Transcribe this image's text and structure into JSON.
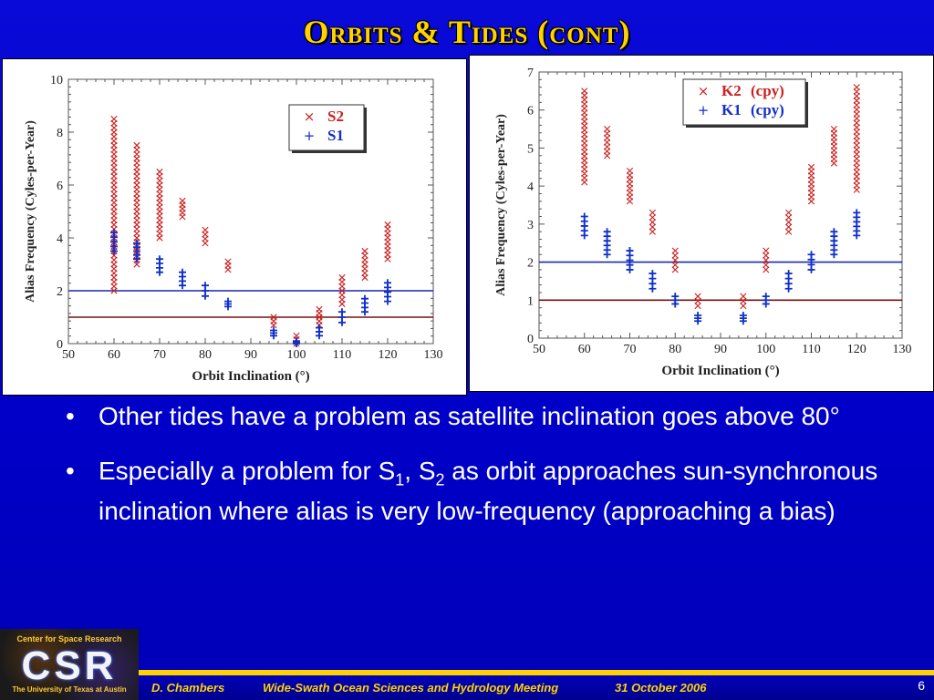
{
  "slide": {
    "title": "Orbits & Tides (cont)",
    "bullets": [
      {
        "text_before": "Other tides have a problem as satellite inclination goes above 80°"
      },
      {
        "text_before": "Especially a problem for S",
        "sub1": "1",
        "mid": ", S",
        "sub2": "2",
        "text_after": " as orbit approaches sun-synchronous inclination where alias is very low-frequency (approaching a bias)"
      }
    ],
    "bullet_glyph": "•",
    "footer": {
      "author": "D. Chambers",
      "meeting": "Wide-Swath Ocean Sciences and Hydrology Meeting",
      "date": "31 October 2006",
      "page": "6"
    },
    "logo": {
      "top_text": "Center for Space Research",
      "big_text": "CSR",
      "bottom_text": "The University of Texas at Austin"
    }
  },
  "chart_data": [
    {
      "type": "scatter",
      "title": "",
      "xlabel": "Orbit Inclination (°)",
      "ylabel": "Alias Frequency (Cyles-per-Year)",
      "xlim": [
        50,
        130
      ],
      "ylim": [
        0,
        10
      ],
      "xticks": [
        50,
        60,
        70,
        80,
        90,
        100,
        110,
        120,
        130
      ],
      "yticks": [
        0,
        2,
        4,
        6,
        8,
        10
      ],
      "legend_position": "top-right",
      "grid": false,
      "reference_lines": [
        {
          "y": 2,
          "color": "#1a2aaa"
        },
        {
          "y": 1,
          "color": "#7a1010"
        }
      ],
      "series": [
        {
          "name": "S2",
          "marker": "×",
          "color": "#cc1f1f",
          "ranges": [
            {
              "x": 60,
              "ymin": 2.0,
              "ymax": 8.5
            },
            {
              "x": 65,
              "ymin": 3.0,
              "ymax": 7.5
            },
            {
              "x": 70,
              "ymin": 4.0,
              "ymax": 6.5
            },
            {
              "x": 75,
              "ymin": 4.8,
              "ymax": 5.4
            },
            {
              "x": 80,
              "ymin": 3.8,
              "ymax": 4.3
            },
            {
              "x": 85,
              "ymin": 2.8,
              "ymax": 3.1
            },
            {
              "x": 95,
              "ymin": 0.7,
              "ymax": 1.0
            },
            {
              "x": 100,
              "ymin": 0.0,
              "ymax": 0.3
            },
            {
              "x": 105,
              "ymin": 0.7,
              "ymax": 1.3
            },
            {
              "x": 110,
              "ymin": 1.5,
              "ymax": 2.5
            },
            {
              "x": 115,
              "ymin": 2.5,
              "ymax": 3.5
            },
            {
              "x": 120,
              "ymin": 3.2,
              "ymax": 4.5
            }
          ]
        },
        {
          "name": "S1",
          "marker": "+",
          "color": "#1030c8",
          "ranges": [
            {
              "x": 60,
              "ymin": 3.5,
              "ymax": 4.2
            },
            {
              "x": 65,
              "ymin": 3.2,
              "ymax": 3.8
            },
            {
              "x": 70,
              "ymin": 2.7,
              "ymax": 3.2
            },
            {
              "x": 75,
              "ymin": 2.2,
              "ymax": 2.7
            },
            {
              "x": 80,
              "ymin": 1.8,
              "ymax": 2.2
            },
            {
              "x": 85,
              "ymin": 1.4,
              "ymax": 1.6
            },
            {
              "x": 95,
              "ymin": 0.3,
              "ymax": 0.5
            },
            {
              "x": 100,
              "ymin": 0.0,
              "ymax": 0.1
            },
            {
              "x": 105,
              "ymin": 0.3,
              "ymax": 0.6
            },
            {
              "x": 110,
              "ymin": 0.8,
              "ymax": 1.2
            },
            {
              "x": 115,
              "ymin": 1.2,
              "ymax": 1.7
            },
            {
              "x": 120,
              "ymin": 1.6,
              "ymax": 2.3
            }
          ]
        }
      ]
    },
    {
      "type": "scatter",
      "title": "",
      "xlabel": "Orbit Inclination (°)",
      "ylabel": "Alias Frequency (Cyles-per-Year)",
      "xlim": [
        50,
        130
      ],
      "ylim": [
        0,
        7
      ],
      "xticks": [
        50,
        60,
        70,
        80,
        90,
        100,
        110,
        120,
        130
      ],
      "yticks": [
        0,
        1,
        2,
        3,
        4,
        5,
        6,
        7
      ],
      "legend_position": "top-right",
      "grid": false,
      "reference_lines": [
        {
          "y": 2,
          "color": "#1a2aaa"
        },
        {
          "y": 1,
          "color": "#7a1010"
        }
      ],
      "series": [
        {
          "name": "K2",
          "unit": "(cpy)",
          "marker": "×",
          "color": "#cc1f1f",
          "ranges": [
            {
              "x": 60,
              "ymin": 4.1,
              "ymax": 6.5
            },
            {
              "x": 65,
              "ymin": 4.8,
              "ymax": 5.5
            },
            {
              "x": 70,
              "ymin": 3.6,
              "ymax": 4.4
            },
            {
              "x": 75,
              "ymin": 2.8,
              "ymax": 3.3
            },
            {
              "x": 80,
              "ymin": 1.8,
              "ymax": 2.3
            },
            {
              "x": 85,
              "ymin": 0.85,
              "ymax": 1.1
            },
            {
              "x": 95,
              "ymin": 0.85,
              "ymax": 1.1
            },
            {
              "x": 100,
              "ymin": 1.8,
              "ymax": 2.3
            },
            {
              "x": 105,
              "ymin": 2.8,
              "ymax": 3.3
            },
            {
              "x": 110,
              "ymin": 3.6,
              "ymax": 4.5
            },
            {
              "x": 115,
              "ymin": 4.6,
              "ymax": 5.5
            },
            {
              "x": 120,
              "ymin": 3.9,
              "ymax": 6.6
            }
          ]
        },
        {
          "name": "K1",
          "unit": "(cpy)",
          "marker": "+",
          "color": "#1030c8",
          "ranges": [
            {
              "x": 60,
              "ymin": 2.7,
              "ymax": 3.2
            },
            {
              "x": 65,
              "ymin": 2.2,
              "ymax": 2.8
            },
            {
              "x": 70,
              "ymin": 1.8,
              "ymax": 2.3
            },
            {
              "x": 75,
              "ymin": 1.3,
              "ymax": 1.7
            },
            {
              "x": 80,
              "ymin": 0.9,
              "ymax": 1.1
            },
            {
              "x": 85,
              "ymin": 0.45,
              "ymax": 0.6
            },
            {
              "x": 95,
              "ymin": 0.45,
              "ymax": 0.6
            },
            {
              "x": 100,
              "ymin": 0.9,
              "ymax": 1.1
            },
            {
              "x": 105,
              "ymin": 1.3,
              "ymax": 1.7
            },
            {
              "x": 110,
              "ymin": 1.8,
              "ymax": 2.2
            },
            {
              "x": 115,
              "ymin": 2.2,
              "ymax": 2.8
            },
            {
              "x": 120,
              "ymin": 2.7,
              "ymax": 3.3
            }
          ]
        }
      ]
    }
  ]
}
